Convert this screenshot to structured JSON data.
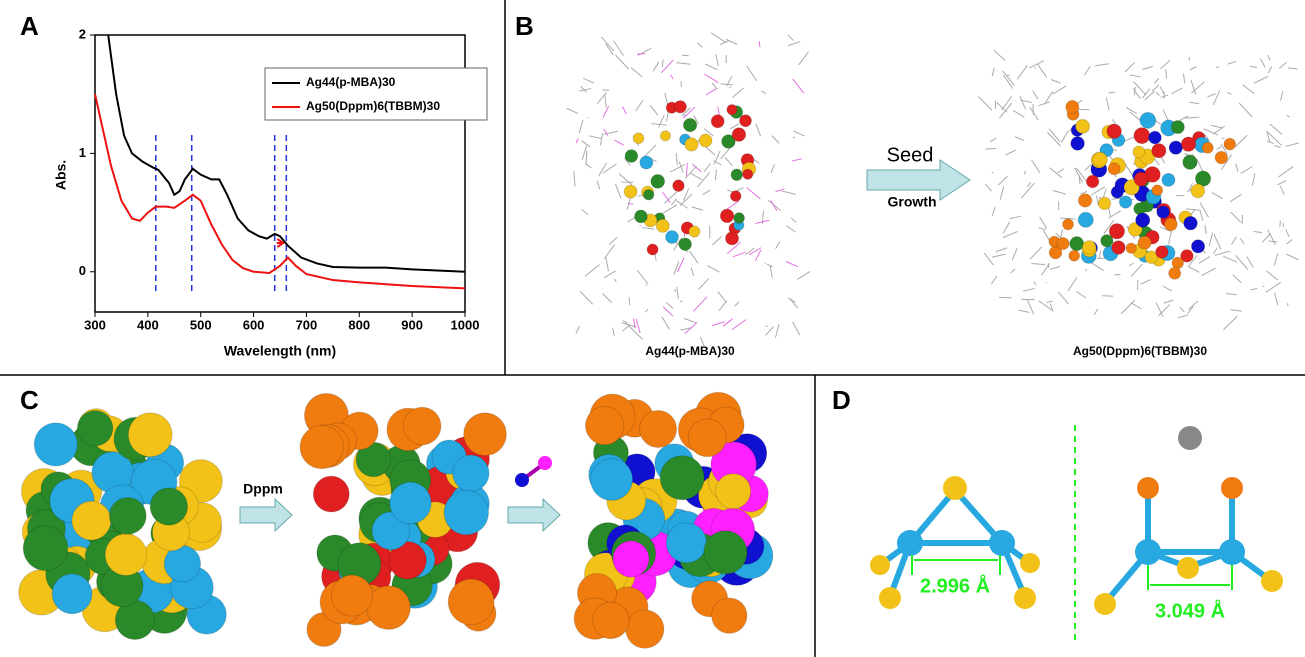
{
  "labels": [
    "A",
    "B",
    "C",
    "D"
  ],
  "chart_data": {
    "type": "line",
    "xlabel": "Wavelength (nm)",
    "ylabel": "Abs.",
    "xlim": [
      300,
      1000
    ],
    "xticks": [
      300,
      400,
      500,
      600,
      700,
      800,
      900,
      1000
    ],
    "ylim": [
      -0.34,
      2
    ],
    "yticks": [
      0,
      1,
      2
    ],
    "markers": [
      415,
      483,
      640,
      662
    ],
    "marker_color": "#2233dd",
    "series": [
      {
        "name": "Ag44(p-MBA)30",
        "color": "#000000",
        "x": [
          325,
          340,
          355,
          370,
          390,
          410,
          420,
          440,
          450,
          460,
          470,
          485,
          500,
          520,
          535,
          550,
          570,
          590,
          610,
          625,
          640,
          650,
          665,
          690,
          720,
          750,
          800,
          850,
          900,
          1000
        ],
        "values": [
          2.0,
          1.5,
          1.15,
          1.0,
          0.93,
          0.88,
          0.86,
          0.75,
          0.65,
          0.68,
          0.78,
          0.87,
          0.82,
          0.78,
          0.78,
          0.65,
          0.45,
          0.35,
          0.3,
          0.28,
          0.32,
          0.3,
          0.22,
          0.12,
          0.07,
          0.04,
          0.035,
          0.035,
          0.02,
          0.0
        ]
      },
      {
        "name": "Ag50(Dppm)6(TBBM)30",
        "color": "#ee1111",
        "x": [
          300,
          315,
          330,
          350,
          370,
          385,
          400,
          415,
          435,
          450,
          470,
          485,
          500,
          520,
          540,
          560,
          580,
          600,
          630,
          650,
          665,
          680,
          700,
          750,
          800,
          900,
          1000
        ],
        "values": [
          1.5,
          1.2,
          0.9,
          0.6,
          0.45,
          0.43,
          0.5,
          0.55,
          0.55,
          0.54,
          0.6,
          0.65,
          0.6,
          0.4,
          0.23,
          0.1,
          0.03,
          0.0,
          -0.01,
          0.05,
          0.12,
          0.05,
          -0.02,
          -0.07,
          -0.09,
          -0.12,
          -0.14
        ]
      }
    ]
  },
  "panel_b": {
    "left_caption": "Ag44(p-MBA)30",
    "arrow_top": "Seed",
    "arrow_bottom": "Growth",
    "right_caption": "Ag50(Dppm)6(TBBM)30"
  },
  "panel_c": {
    "arrow_label": "Dppm"
  },
  "panel_d": {
    "distances": [
      "2.996 Å",
      "3.049 Å"
    ]
  }
}
